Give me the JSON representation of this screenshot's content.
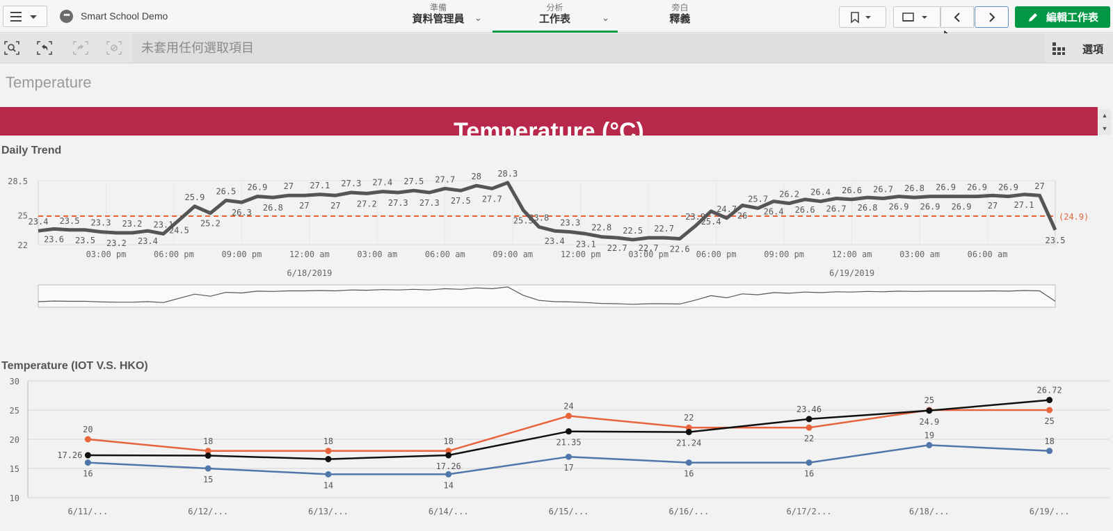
{
  "app": {
    "name": "Smart School Demo"
  },
  "nav": {
    "tabs": [
      {
        "sub": "準備",
        "main": "資料管理員"
      },
      {
        "sub": "分析",
        "main": "工作表"
      },
      {
        "sub": "旁白",
        "main": "釋義"
      }
    ],
    "edit_label": "編輯工作表"
  },
  "selection": {
    "placeholder": "未套用任何選取項目",
    "options_label": "選項"
  },
  "sheet": {
    "title": "Temperature"
  },
  "banner": {
    "title": "Temperature (°C)"
  },
  "colors": {
    "accent": "#009845",
    "banner": "#b8284a",
    "trend_line": "#555555",
    "reference": "#e8643c",
    "series_black": "#111111",
    "series_orange": "#e8643c",
    "series_blue": "#4f77aa"
  },
  "chart_data": [
    {
      "type": "line",
      "title": "Daily Trend",
      "y_ticks": [
        "28.5",
        "25",
        "22"
      ],
      "ylim": [
        22,
        28.5
      ],
      "x_tick_labels": [
        "03:00 pm",
        "06:00 pm",
        "09:00 pm",
        "12:00 am",
        "03:00 am",
        "06:00 am",
        "09:00 am",
        "12:00 pm",
        "03:00 pm",
        "06:00 pm",
        "09:00 pm",
        "12:00 am",
        "03:00 am",
        "06:00 am"
      ],
      "date_labels": [
        "6/18/2019",
        "6/19/2019"
      ],
      "reference_line": {
        "value": 24.9,
        "label": "(24.9)"
      },
      "point_labels": [
        "23.4",
        "23.6",
        "23.5",
        "23.5",
        "23.3",
        "23.2",
        "23.2",
        "23.4",
        "23.1",
        "24.5",
        "25.9",
        "25.2",
        "26.5",
        "26.3",
        "26.9",
        "26.8",
        "27",
        "27",
        "27.1",
        "27",
        "27.3",
        "27.2",
        "27.4",
        "27.3",
        "27.5",
        "27.3",
        "27.7",
        "27.5",
        "28",
        "27.7",
        "28.3",
        "25.5",
        "23.8",
        "23.4",
        "23.3",
        "23.1",
        "22.8",
        "22.7",
        "22.5",
        "22.7",
        "22.7",
        "22.6",
        "23.9",
        "25.4",
        "24.7",
        "26",
        "25.7",
        "26.4",
        "26.2",
        "26.6",
        "26.4",
        "26.7",
        "26.6",
        "26.8",
        "26.7",
        "26.9",
        "26.8",
        "26.9",
        "26.9",
        "26.9",
        "26.9",
        "27",
        "26.9",
        "27.1",
        "27",
        "23.5"
      ]
    },
    {
      "type": "line",
      "title": "Temperature (IOT V.S. HKO)",
      "categories": [
        "6/11/...",
        "6/12/...",
        "6/13/...",
        "6/14/...",
        "6/15/...",
        "6/16/...",
        "6/17/2...",
        "6/18/...",
        "6/19/..."
      ],
      "y_ticks": [
        "30",
        "25",
        "20",
        "15",
        "10"
      ],
      "ylim": [
        10,
        30
      ],
      "series": [
        {
          "color": "black",
          "values": [
            17.26,
            17.2,
            16.6,
            17.26,
            21.35,
            21.24,
            23.46,
            24.9,
            26.72
          ],
          "labels": [
            "17.26",
            "",
            "",
            "17.26",
            "21.35",
            "21.24",
            "23.46",
            "24.9",
            "26.72"
          ]
        },
        {
          "color": "orange",
          "values": [
            20,
            18,
            18,
            18,
            24,
            22,
            22,
            25,
            25
          ],
          "labels": [
            "20",
            "18",
            "18",
            "18",
            "24",
            "22",
            "22",
            "25",
            "25"
          ]
        },
        {
          "color": "blue",
          "values": [
            16,
            15,
            14,
            14,
            17,
            16,
            16,
            19,
            18
          ],
          "labels": [
            "16",
            "15",
            "14",
            "14",
            "17",
            "16",
            "16",
            "19",
            "18"
          ]
        }
      ]
    }
  ]
}
